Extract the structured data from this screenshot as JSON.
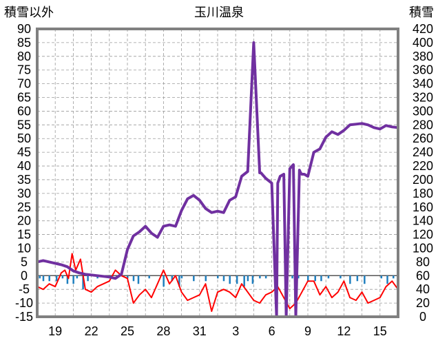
{
  "chart_data": {
    "type": "line",
    "title": "玉川温泉",
    "y_left_label": "積雪以外",
    "y_right_label": "積雪",
    "y_left_ticks": [
      "90",
      "85",
      "80",
      "75",
      "70",
      "65",
      "60",
      "55",
      "50",
      "45",
      "40",
      "35",
      "30",
      "25",
      "20",
      "15",
      "10",
      "5",
      "0",
      "-5",
      "-10",
      "-15"
    ],
    "y_right_ticks": [
      "420",
      "400",
      "380",
      "360",
      "340",
      "320",
      "300",
      "280",
      "260",
      "240",
      "220",
      "200",
      "180",
      "160",
      "140",
      "120",
      "100",
      "80",
      "60",
      "40",
      "20",
      "0"
    ],
    "x_ticks": [
      "19",
      "22",
      "25",
      "28",
      "31",
      "3",
      "6",
      "9",
      "12",
      "15"
    ],
    "ylim_left": [
      -15,
      90
    ],
    "ylim_right": [
      0,
      420
    ],
    "x_range_days": [
      0,
      30
    ],
    "grid": true,
    "colors": {
      "snow_depth": "#7030a0",
      "temperature": "#ff0000",
      "precipitation": "#1f7fbf",
      "frame": "#808080"
    },
    "series": [
      {
        "key": "snow_depth",
        "axis": "right",
        "x": [
          0,
          0.5,
          1,
          1.5,
          2,
          2.5,
          3,
          3.5,
          4,
          4.5,
          5,
          5.5,
          6,
          6.5,
          7,
          7.5,
          8,
          8.5,
          9,
          9.5,
          10,
          10.5,
          11,
          11.5,
          12,
          12.5,
          13,
          13.5,
          14,
          14.5,
          15,
          15.5,
          16,
          16.5,
          17,
          17.5,
          18,
          18.5,
          18.6,
          19,
          19.5,
          19.9,
          20,
          20.2,
          20.5,
          20.7,
          21,
          21.2,
          21.3,
          21.5,
          21.8,
          21.9,
          22,
          22.2,
          22.5,
          23,
          23.5,
          24,
          24.5,
          25,
          25.5,
          26,
          26.5,
          27,
          27.5,
          28,
          28.5,
          29,
          29.5,
          30
        ],
        "y": [
          80,
          82,
          80,
          78,
          76,
          73,
          67,
          64,
          62,
          61,
          60,
          59,
          58,
          56,
          62,
          98,
          118,
          124,
          132,
          122,
          116,
          132,
          134,
          132,
          155,
          172,
          177,
          170,
          158,
          152,
          154,
          152,
          170,
          175,
          205,
          212,
          400,
          210,
          210,
          202,
          195,
          0,
          195,
          205,
          208,
          0,
          216,
          220,
          222,
          0,
          214,
          210,
          208,
          208,
          205,
          240,
          245,
          262,
          270,
          266,
          272,
          280,
          281,
          282,
          280,
          276,
          274,
          279,
          277,
          276
        ]
      },
      {
        "key": "temperature",
        "axis": "left",
        "x": [
          0,
          0.5,
          1,
          1.5,
          2,
          2.3,
          2.6,
          2.9,
          3.2,
          3.6,
          4,
          4.5,
          5,
          5.5,
          6,
          6.5,
          7,
          7.5,
          8,
          8.5,
          9,
          9.5,
          10,
          10.5,
          11,
          11.5,
          12,
          12.5,
          13,
          13.5,
          14,
          14.5,
          15,
          15.5,
          16,
          16.5,
          17,
          17.5,
          18,
          18.5,
          19,
          19.5,
          20,
          20.5,
          21,
          21.5,
          22,
          22.5,
          23,
          23.5,
          24,
          24.5,
          25,
          25.5,
          26,
          26.5,
          27,
          27.5,
          28,
          28.5,
          29,
          29.5,
          30
        ],
        "y": [
          -4,
          -5,
          -3,
          -4,
          1,
          2,
          -1,
          8,
          2,
          6,
          -5,
          -6,
          -4,
          -3,
          -2,
          2,
          0,
          -1,
          -10,
          -7,
          -5,
          -8,
          -3,
          2,
          -3,
          0,
          -6,
          -9,
          -8,
          -7,
          -3,
          -13,
          -6,
          -5,
          -6,
          -8,
          -3,
          -6,
          -9,
          -10,
          -7,
          -6,
          -4,
          -8,
          -12,
          -10,
          -6,
          -2,
          -2,
          -7,
          -4,
          -8,
          -6,
          -2,
          -8,
          -9,
          -6,
          -10,
          -9,
          -8,
          -4,
          -2,
          -5
        ]
      }
    ],
    "precipitation": {
      "axis": "left",
      "x": [
        0.2,
        0.5,
        1,
        1.6,
        2.1,
        2.5,
        3,
        3.3,
        3.8,
        4.2,
        5,
        6,
        7.5,
        8,
        8.4,
        9.3,
        10.5,
        11.2,
        11.8,
        12,
        13,
        14,
        15,
        15.5,
        16,
        16.6,
        17.2,
        17.5,
        17.9,
        18.5,
        19,
        20.6,
        21.2,
        21.7,
        22.5,
        23.1,
        23.6,
        24.2,
        25.2,
        26,
        26.6,
        27.2,
        28.6,
        29.1,
        29.6
      ],
      "y": [
        -1,
        -2,
        -2,
        -2,
        -1,
        -3,
        -3,
        -1,
        -5,
        -2,
        -1,
        -1,
        -1,
        -2,
        -3,
        -1,
        -4,
        -2,
        -4,
        -1,
        -2,
        -2,
        -1,
        -2,
        -3,
        -3,
        -4,
        -2,
        -3,
        -1,
        -1,
        -1,
        -1,
        -1,
        -2,
        -2,
        -2,
        -1,
        -1,
        -3,
        -2,
        -3,
        -1,
        -3,
        -1
      ]
    }
  }
}
